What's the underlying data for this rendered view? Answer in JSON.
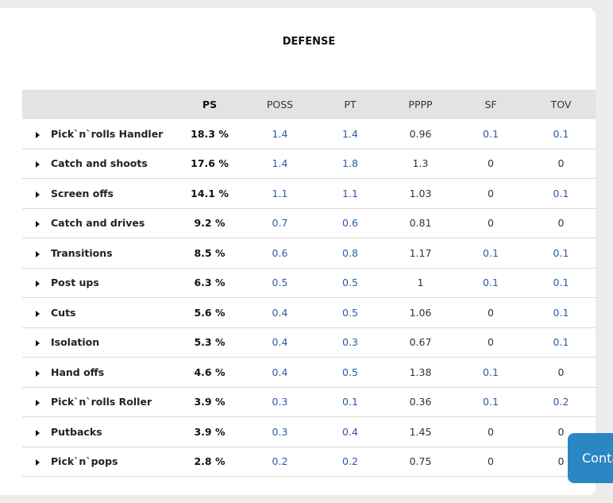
{
  "section": {
    "title": "DEFENSE"
  },
  "table": {
    "headers": [
      "",
      "PS",
      "POSS",
      "PT",
      "PPPP",
      "SF",
      "TOV"
    ],
    "rows": [
      {
        "name": "Pick`n`rolls Handler",
        "ps": "18.3 %",
        "poss": "1.4",
        "pt": "1.4",
        "pppp": "0.96",
        "sf": "0.1",
        "tov": "0.1"
      },
      {
        "name": "Catch and shoots",
        "ps": "17.6 %",
        "poss": "1.4",
        "pt": "1.8",
        "pppp": "1.3",
        "sf": "0",
        "tov": "0"
      },
      {
        "name": "Screen offs",
        "ps": "14.1 %",
        "poss": "1.1",
        "pt": "1.1",
        "pppp": "1.03",
        "sf": "0",
        "tov": "0.1"
      },
      {
        "name": "Catch and drives",
        "ps": "9.2 %",
        "poss": "0.7",
        "pt": "0.6",
        "pppp": "0.81",
        "sf": "0",
        "tov": "0"
      },
      {
        "name": "Transitions",
        "ps": "8.5 %",
        "poss": "0.6",
        "pt": "0.8",
        "pppp": "1.17",
        "sf": "0.1",
        "tov": "0.1"
      },
      {
        "name": "Post ups",
        "ps": "6.3 %",
        "poss": "0.5",
        "pt": "0.5",
        "pppp": "1",
        "sf": "0.1",
        "tov": "0.1"
      },
      {
        "name": "Cuts",
        "ps": "5.6 %",
        "poss": "0.4",
        "pt": "0.5",
        "pppp": "1.06",
        "sf": "0",
        "tov": "0.1"
      },
      {
        "name": "Isolation",
        "ps": "5.3 %",
        "poss": "0.4",
        "pt": "0.3",
        "pppp": "0.67",
        "sf": "0",
        "tov": "0.1"
      },
      {
        "name": "Hand offs",
        "ps": "4.6 %",
        "poss": "0.4",
        "pt": "0.5",
        "pppp": "1.38",
        "sf": "0.1",
        "tov": "0"
      },
      {
        "name": "Pick`n`rolls Roller",
        "ps": "3.9 %",
        "poss": "0.3",
        "pt": "0.1",
        "pppp": "0.36",
        "sf": "0.1",
        "tov": "0.2"
      },
      {
        "name": "Putbacks",
        "ps": "3.9 %",
        "poss": "0.3",
        "pt": "0.4",
        "pppp": "1.45",
        "sf": "0",
        "tov": "0"
      },
      {
        "name": "Pick`n`pops",
        "ps": "2.8 %",
        "poss": "0.2",
        "pt": "0.2",
        "pppp": "0.75",
        "sf": "0",
        "tov": "0"
      }
    ]
  },
  "contact_button": {
    "label": "Contact"
  },
  "colors": {
    "link": "#2d5aa8",
    "header_bg": "#e3e3e3",
    "contact_bg": "#2b87c4",
    "page_bg": "#ececec"
  },
  "icons": {
    "row_expand": "caret-right-icon"
  }
}
